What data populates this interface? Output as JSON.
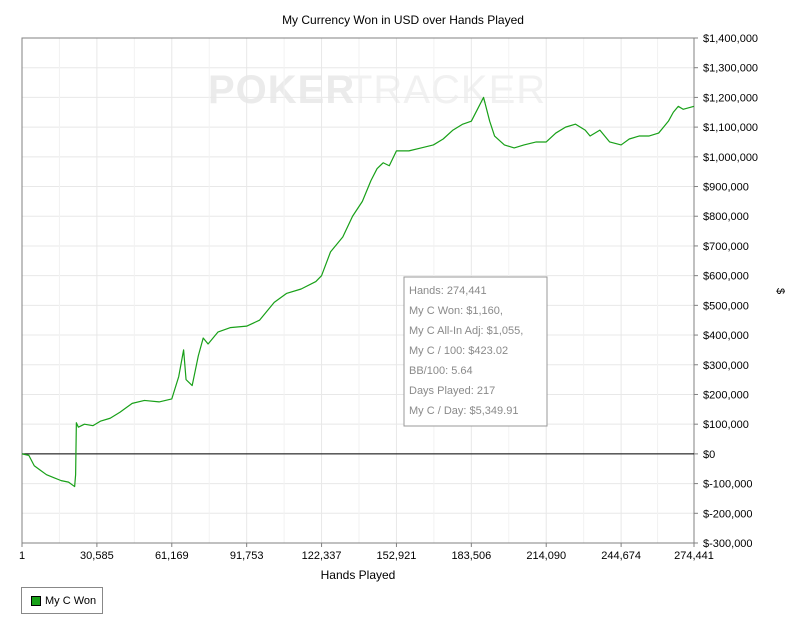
{
  "chart_data": {
    "type": "line",
    "title": "My Currency Won in USD over Hands Played",
    "xlabel": "Hands Played",
    "ylabel": "$",
    "xlim": [
      1,
      274441
    ],
    "ylim": [
      -300000,
      1400000
    ],
    "x_ticks": [
      1,
      30585,
      61169,
      91753,
      122337,
      152921,
      183506,
      214090,
      244674,
      274441
    ],
    "x_tick_labels": [
      "1",
      "30,585",
      "61,169",
      "91,753",
      "122,337",
      "152,921",
      "183,506",
      "214,090",
      "244,674",
      "274,441"
    ],
    "y_ticks": [
      1400000,
      1300000,
      1200000,
      1100000,
      1000000,
      900000,
      800000,
      700000,
      600000,
      500000,
      400000,
      300000,
      200000,
      100000,
      0,
      -100000,
      -200000,
      -300000
    ],
    "y_tick_labels": [
      "$1,400,000",
      "$1,300,000",
      "$1,200,000",
      "$1,100,000",
      "$1,000,000",
      "$900,000",
      "$800,000",
      "$700,000",
      "$600,000",
      "$500,000",
      "$400,000",
      "$300,000",
      "$200,000",
      "$100,000",
      "$0",
      "$-100,000",
      "$-200,000",
      "$-300,000"
    ],
    "grid": true,
    "legend": "bottom-left",
    "watermark": {
      "part1": "POKER",
      "part2": "TRACKER"
    },
    "series": [
      {
        "name": "My C Won",
        "color": "#18a018",
        "x": [
          1,
          2800,
          5000,
          7500,
          10000,
          13000,
          16000,
          19000,
          21500,
          21900,
          22200,
          23000,
          25500,
          29000,
          32000,
          36000,
          40000,
          45000,
          50000,
          56000,
          61169,
          64000,
          66000,
          66500,
          67000,
          69500,
          72000,
          74000,
          76000,
          80000,
          85000,
          91753,
          97000,
          103000,
          108000,
          114000,
          120000,
          122337,
          126000,
          131000,
          135000,
          139000,
          142500,
          145000,
          147500,
          150000,
          152921,
          158000,
          163000,
          168000,
          172000,
          176000,
          180000,
          183506,
          186000,
          188500,
          191000,
          193000,
          197000,
          201000,
          205000,
          210000,
          214090,
          218000,
          222000,
          226000,
          230000,
          232000,
          236000,
          240000,
          244674,
          248000,
          252000,
          256000,
          260000,
          264000,
          266000,
          268000,
          270000,
          274441
        ],
        "y": [
          0,
          -5000,
          -40000,
          -55000,
          -70000,
          -80000,
          -90000,
          -95000,
          -110000,
          -70000,
          105000,
          90000,
          100000,
          95000,
          110000,
          120000,
          140000,
          170000,
          180000,
          175000,
          185000,
          260000,
          350000,
          300000,
          250000,
          230000,
          330000,
          390000,
          370000,
          410000,
          425000,
          430000,
          450000,
          510000,
          540000,
          555000,
          580000,
          600000,
          680000,
          730000,
          800000,
          850000,
          920000,
          960000,
          980000,
          970000,
          1020000,
          1020000,
          1030000,
          1040000,
          1060000,
          1090000,
          1110000,
          1120000,
          1160000,
          1200000,
          1120000,
          1070000,
          1040000,
          1030000,
          1040000,
          1050000,
          1050000,
          1080000,
          1100000,
          1110000,
          1090000,
          1070000,
          1090000,
          1050000,
          1040000,
          1060000,
          1070000,
          1070000,
          1080000,
          1120000,
          1150000,
          1170000,
          1160000,
          1170000
        ]
      }
    ],
    "annotation": {
      "lines": [
        "Hands: 274,441",
        "My C Won: $1,160,",
        "My C All-In Adj: $1,055,",
        "My C / 100: $423.02",
        "BB/100: 5.64",
        "Days Played: 217",
        "My C / Day: $5,349.91"
      ]
    }
  }
}
